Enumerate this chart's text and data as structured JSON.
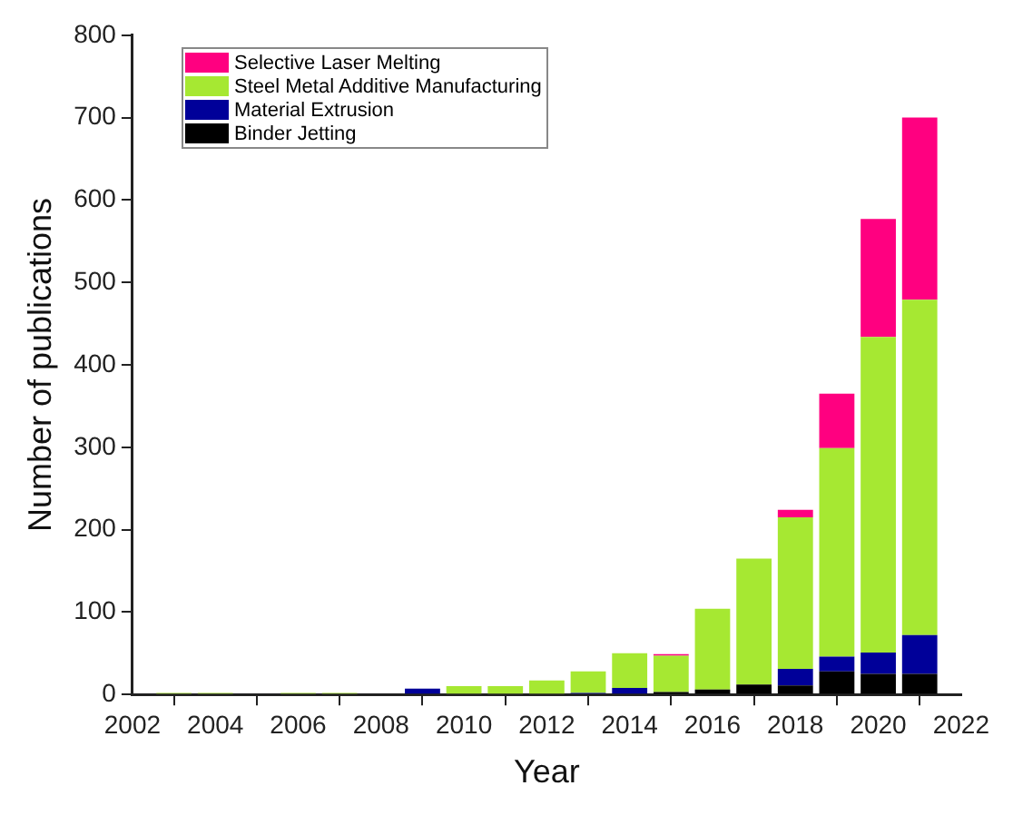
{
  "chart_data": {
    "type": "bar",
    "stacked": true,
    "xlabel": "Year",
    "ylabel": "Number of publications",
    "x": [
      2003,
      2004,
      2005,
      2006,
      2007,
      2008,
      2009,
      2010,
      2011,
      2012,
      2013,
      2014,
      2015,
      2016,
      2017,
      2018,
      2019,
      2020,
      2021
    ],
    "series": [
      {
        "name": "Binder Jetting",
        "color": "#000000",
        "values": [
          null,
          null,
          null,
          null,
          null,
          null,
          null,
          null,
          null,
          null,
          null,
          null,
          3,
          6,
          12,
          11,
          28,
          25,
          25
        ]
      },
      {
        "name": "Material Extrusion",
        "color": "#000099",
        "values": [
          null,
          null,
          null,
          null,
          null,
          null,
          7,
          null,
          null,
          null,
          2,
          8,
          null,
          null,
          null,
          20,
          18,
          26,
          47
        ]
      },
      {
        "name": "Steel Metal Additive Manufacturing",
        "color": "#a6e832",
        "values": [
          2,
          2,
          null,
          2,
          2,
          null,
          null,
          10,
          10,
          17,
          26,
          42,
          44,
          98,
          153,
          184,
          253,
          383,
          407
        ]
      },
      {
        "name": "Selective Laser Melting",
        "color": "#ff0080",
        "values": [
          null,
          null,
          null,
          null,
          null,
          null,
          null,
          null,
          null,
          null,
          null,
          null,
          2,
          null,
          null,
          9,
          66,
          143,
          221
        ]
      }
    ],
    "xlim": [
      2002,
      2022
    ],
    "xticks": [
      2002,
      2004,
      2006,
      2008,
      2010,
      2012,
      2014,
      2016,
      2018,
      2020,
      2022
    ],
    "ylim": [
      0,
      800
    ],
    "yticks": [
      0,
      100,
      200,
      300,
      400,
      500,
      600,
      700,
      800
    ],
    "grid": false,
    "legend": "top left"
  }
}
